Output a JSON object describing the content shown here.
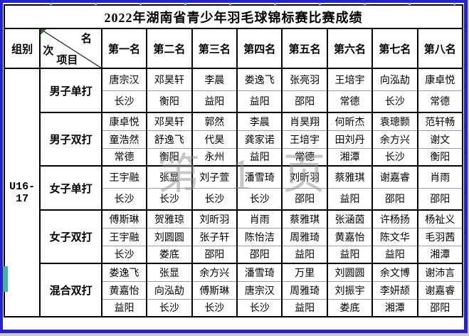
{
  "page": {
    "title": "2022年湖南省青少年羽毛球锦标赛比赛成绩",
    "watermark": "第 1 页",
    "group_label": "U16-17",
    "header": {
      "group_col": "组别",
      "diagonal": {
        "top": "名",
        "left": "次",
        "bottom": "项目"
      },
      "rank_cols": [
        "第一名",
        "第二名",
        "第三名",
        "第四名",
        "第五名",
        "第六名",
        "第七名",
        "第八名"
      ]
    },
    "events": [
      {
        "name": "男子单打",
        "cells": [
          [
            "唐宗汉",
            "长沙"
          ],
          [
            "邓昊轩",
            "衡阳"
          ],
          [
            "李晨",
            "益阳"
          ],
          [
            "娄逸飞",
            "益阳"
          ],
          [
            "张亮羽",
            "邵阳"
          ],
          [
            "王培宇",
            "常德"
          ],
          [
            "向泓劼",
            "长沙"
          ],
          [
            "康卓悦",
            "常德"
          ]
        ]
      },
      {
        "name": "男子双打",
        "cells": [
          [
            "康卓悦",
            "童浩然",
            "常德"
          ],
          [
            "邓昊轩",
            "舒逸飞",
            "衡阳"
          ],
          [
            "郭然",
            "代昊",
            "永州"
          ],
          [
            "李晨",
            "龚家诺",
            "益阳"
          ],
          [
            "肖昊翔",
            "王培宇",
            "常德"
          ],
          [
            "何昕杰",
            "田刘丹",
            "湘潭"
          ],
          [
            "袁璁颢",
            "余方兴",
            "长沙"
          ],
          [
            "范轩畅",
            "谢文",
            "衡阳"
          ]
        ]
      },
      {
        "name": "女子单打",
        "cells": [
          [
            "王宇融",
            "长沙"
          ],
          [
            "张显",
            "长沙"
          ],
          [
            "刘子萱",
            "长沙"
          ],
          [
            "潘雪琦",
            "长沙"
          ],
          [
            "刘昕羽",
            "邵阳"
          ],
          [
            "蔡雅琪",
            "益阳"
          ],
          [
            "谢嘉睿",
            "邵阳"
          ],
          [
            "肖雨",
            "邵阳"
          ]
        ]
      },
      {
        "name": "女子双打",
        "cells": [
          [
            "傅斯琳",
            "王宇融",
            "长沙"
          ],
          [
            "贺雅琼",
            "刘圆圆",
            "娄底"
          ],
          [
            "刘昕羽",
            "张子轩",
            "邵阳"
          ],
          [
            "肖雨",
            "陈怡洁",
            "邵阳"
          ],
          [
            "蔡雅琪",
            "周雅琦",
            "益阳"
          ],
          [
            "张涵茵",
            "黄嘉怡",
            "益阳"
          ],
          [
            "许杨扬",
            "陈文华",
            "益阳"
          ],
          [
            "杨祉义",
            "毛羽茜",
            "湘潭"
          ]
        ]
      },
      {
        "name": "混合双打",
        "cells": [
          [
            "娄逸飞",
            "黄嘉怡",
            "益阳"
          ],
          [
            "张显",
            "向泓劼",
            "长沙"
          ],
          [
            "余方兴",
            "傅斯琳",
            "长沙"
          ],
          [
            "潘雪琦",
            "唐宗汉",
            "长沙"
          ],
          [
            "万里",
            "周雅琦",
            "益阳"
          ],
          [
            "刘圆圆",
            "刘振宇",
            "娄底"
          ],
          [
            "余文博",
            "李妍颉",
            "湘潭"
          ],
          [
            "谢沛言",
            "谢嘉睿",
            "邵阳"
          ]
        ]
      }
    ],
    "colors": {
      "frame": "#2323cf",
      "watermark": "#8f8f8f",
      "table_border": "#000000",
      "corner_flag": "#1d7a1d",
      "teal_mark": "#45b0a4"
    }
  }
}
